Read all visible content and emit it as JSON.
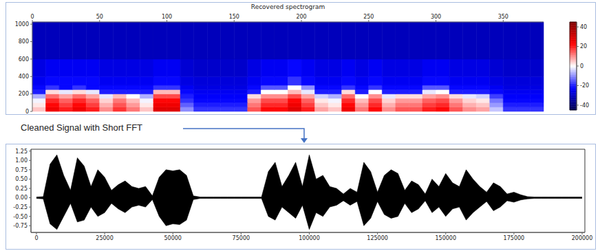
{
  "chart_data": [
    {
      "type": "heatmap",
      "title": "Recovered spectrogram",
      "x_edges": [
        0,
        10,
        20,
        30,
        40,
        50,
        60,
        70,
        80,
        90,
        100,
        110,
        120,
        130,
        140,
        150,
        160,
        170,
        180,
        190,
        200,
        210,
        220,
        230,
        240,
        250,
        260,
        270,
        280,
        290,
        300,
        310,
        320,
        330,
        340,
        350,
        360,
        370,
        380
      ],
      "y_edges": [
        0,
        50,
        100,
        150,
        200,
        250,
        300,
        400,
        600,
        1025
      ],
      "z": [
        [
          5,
          25,
          20,
          25,
          20,
          10,
          18,
          12,
          5,
          28,
          28,
          -10,
          -18,
          -18,
          -18,
          -18,
          15,
          22,
          22,
          28,
          20,
          8,
          5,
          25,
          12,
          22,
          10,
          15,
          15,
          20,
          22,
          15,
          10,
          8,
          -5,
          -18,
          -18,
          -18
        ],
        [
          2,
          22,
          17,
          22,
          17,
          7,
          15,
          9,
          2,
          25,
          25,
          -14,
          -20,
          -20,
          -20,
          -20,
          12,
          19,
          19,
          25,
          17,
          5,
          2,
          22,
          9,
          19,
          7,
          12,
          12,
          17,
          19,
          12,
          7,
          5,
          -9,
          -20,
          -20,
          -20
        ],
        [
          -1,
          19,
          14,
          19,
          14,
          4,
          12,
          6,
          -1,
          22,
          22,
          -18,
          -22,
          -22,
          -22,
          -22,
          9,
          16,
          16,
          22,
          14,
          2,
          -1,
          19,
          6,
          16,
          4,
          9,
          9,
          14,
          16,
          9,
          4,
          2,
          -12,
          -22,
          -22,
          -22
        ],
        [
          -7,
          13,
          8,
          13,
          8,
          -2,
          6,
          0,
          -7,
          16,
          16,
          -20,
          -23,
          -23,
          -23,
          -23,
          3,
          10,
          10,
          16,
          8,
          -4,
          -7,
          13,
          0,
          10,
          -2,
          3,
          3,
          8,
          10,
          3,
          -2,
          -4,
          -17,
          -23,
          -23,
          -23
        ],
        [
          -20,
          3,
          -2,
          3,
          -2,
          -20,
          -20,
          -20,
          -20,
          6,
          6,
          -22,
          -24,
          -24,
          -24,
          -24,
          -20,
          0,
          0,
          6,
          -2,
          -20,
          -20,
          3,
          -20,
          0,
          -20,
          -20,
          -20,
          -2,
          0,
          -20,
          -20,
          -20,
          -22,
          -24,
          -24,
          -24
        ],
        [
          -22,
          -18,
          -22,
          -18,
          -22,
          -22,
          -22,
          -22,
          -22,
          -18,
          -18,
          -24,
          -26,
          -26,
          -26,
          -26,
          -22,
          -15,
          -15,
          0,
          -10,
          -22,
          -22,
          -18,
          -22,
          -18,
          -22,
          -22,
          -22,
          -15,
          -15,
          -22,
          -22,
          -22,
          -24,
          -26,
          -26,
          -26
        ],
        [
          -24,
          -22,
          -22,
          -22,
          -22,
          -24,
          -24,
          -24,
          -24,
          -22,
          -22,
          -26,
          -27,
          -27,
          -27,
          -27,
          -24,
          -22,
          -22,
          -18,
          -22,
          -24,
          -24,
          -22,
          -24,
          -22,
          -24,
          -24,
          -24,
          -22,
          -22,
          -24,
          -24,
          -24,
          -26,
          -27,
          -27,
          -27
        ],
        [
          -26,
          -24,
          -24,
          -24,
          -24,
          -26,
          -26,
          -26,
          -26,
          -24,
          -24,
          -28,
          -29,
          -29,
          -29,
          -29,
          -26,
          -24,
          -24,
          -22,
          -24,
          -26,
          -26,
          -24,
          -26,
          -24,
          -26,
          -26,
          -26,
          -24,
          -24,
          -26,
          -26,
          -26,
          -28,
          -29,
          -29,
          -29
        ],
        [
          -31,
          -31,
          -31,
          -31,
          -31,
          -31,
          -31,
          -31,
          -31,
          -31,
          -31,
          -31,
          -31,
          -31,
          -31,
          -31,
          -31,
          -31,
          -31,
          -31,
          -31,
          -31,
          -31,
          -31,
          -31,
          -31,
          -31,
          -31,
          -31,
          -31,
          -31,
          -31,
          -31,
          -31,
          -31,
          -31,
          -31,
          -31
        ]
      ],
      "xlim": [
        0,
        380
      ],
      "xticks": [
        0,
        50,
        100,
        150,
        200,
        250,
        300,
        350
      ],
      "ylim": [
        0,
        1025
      ],
      "yticks": [
        0,
        200,
        400,
        600,
        800,
        1000
      ],
      "colorbar_range": [
        -45,
        45
      ],
      "colorbar_ticks": [
        40,
        20,
        0,
        -20,
        -40
      ]
    },
    {
      "type": "area",
      "annotations": [
        "Cleaned Signal with Short FFT"
      ],
      "color": "#000000",
      "x": [
        0,
        2500,
        5000,
        7500,
        10000,
        12500,
        15000,
        17500,
        20000,
        22500,
        25000,
        27500,
        30000,
        32500,
        35000,
        37500,
        40000,
        42500,
        45000,
        47500,
        50000,
        52500,
        55000,
        57500,
        60000,
        62500,
        65000,
        67500,
        70000,
        72500,
        75000,
        77500,
        80000,
        82500,
        85000,
        87500,
        90000,
        92500,
        95000,
        97500,
        100000,
        102500,
        105000,
        107500,
        110000,
        112500,
        115000,
        117500,
        120000,
        122500,
        125000,
        127500,
        130000,
        132500,
        135000,
        137500,
        140000,
        142500,
        145000,
        147500,
        150000,
        152500,
        155000,
        157500,
        160000,
        162500,
        165000,
        167500,
        170000,
        172500,
        175000,
        177500,
        180000,
        182500,
        185000,
        187500,
        190000,
        192500,
        195000,
        197500,
        200000
      ],
      "upper": [
        0.02,
        0.03,
        0.9,
        1.15,
        0.6,
        0.2,
        1.07,
        0.85,
        0.3,
        0.75,
        0.55,
        0.2,
        0.35,
        0.45,
        0.3,
        0.25,
        0.3,
        0.05,
        0.55,
        0.75,
        0.72,
        0.75,
        0.6,
        0.05,
        0.02,
        0.02,
        0.02,
        0.02,
        0.02,
        0.02,
        0.02,
        0.02,
        0.02,
        0.02,
        0.7,
        0.95,
        0.3,
        0.6,
        0.95,
        0.3,
        1.15,
        0.5,
        0.6,
        0.3,
        0.25,
        0.1,
        0.25,
        0.15,
        0.95,
        0.7,
        0.15,
        0.6,
        0.75,
        0.65,
        0.2,
        0.45,
        0.35,
        0.1,
        0.5,
        0.3,
        0.65,
        0.4,
        0.3,
        0.75,
        0.5,
        0.3,
        0.15,
        0.4,
        0.3,
        0.1,
        0.15,
        0.08,
        0.03,
        0.02,
        0.02,
        0.02,
        0.02,
        0.02,
        0.02,
        0.02,
        0.02
      ],
      "lower": [
        -0.02,
        -0.03,
        -0.7,
        -0.85,
        -0.5,
        -0.15,
        -0.65,
        -0.6,
        -0.25,
        -0.5,
        -0.4,
        -0.15,
        -0.3,
        -0.4,
        -0.25,
        -0.2,
        -0.25,
        -0.05,
        -0.5,
        -0.75,
        -0.7,
        -0.72,
        -0.6,
        -0.05,
        -0.02,
        -0.02,
        -0.02,
        -0.02,
        -0.02,
        -0.02,
        -0.02,
        -0.02,
        -0.02,
        -0.02,
        -0.5,
        -0.6,
        -0.25,
        -0.4,
        -0.55,
        -0.2,
        -0.85,
        -0.4,
        -0.5,
        -0.25,
        -0.2,
        -0.08,
        -0.2,
        -0.1,
        -0.75,
        -0.55,
        -0.1,
        -0.45,
        -0.55,
        -0.5,
        -0.15,
        -0.4,
        -0.3,
        -0.08,
        -0.4,
        -0.25,
        -0.5,
        -0.3,
        -0.25,
        -0.6,
        -0.4,
        -0.25,
        -0.1,
        -0.35,
        -0.25,
        -0.08,
        -0.12,
        -0.06,
        -0.03,
        -0.02,
        -0.02,
        -0.02,
        -0.02,
        -0.02,
        -0.02,
        -0.02,
        -0.02
      ],
      "xlim": [
        -2000,
        201000
      ],
      "xticks": [
        0,
        25000,
        50000,
        75000,
        100000,
        125000,
        150000,
        175000,
        200000
      ],
      "ylim": [
        -0.93,
        1.3
      ],
      "yticks": [
        -0.75,
        {
          "value": -0.5,
          "label": "-0.50"
        },
        -0.25,
        {
          "value": 0,
          "label": "0.00"
        },
        0.25,
        {
          "value": 0.5,
          "label": "0.50"
        },
        0.75,
        {
          "value": 1,
          "label": "1.00"
        },
        1.25
      ]
    }
  ]
}
